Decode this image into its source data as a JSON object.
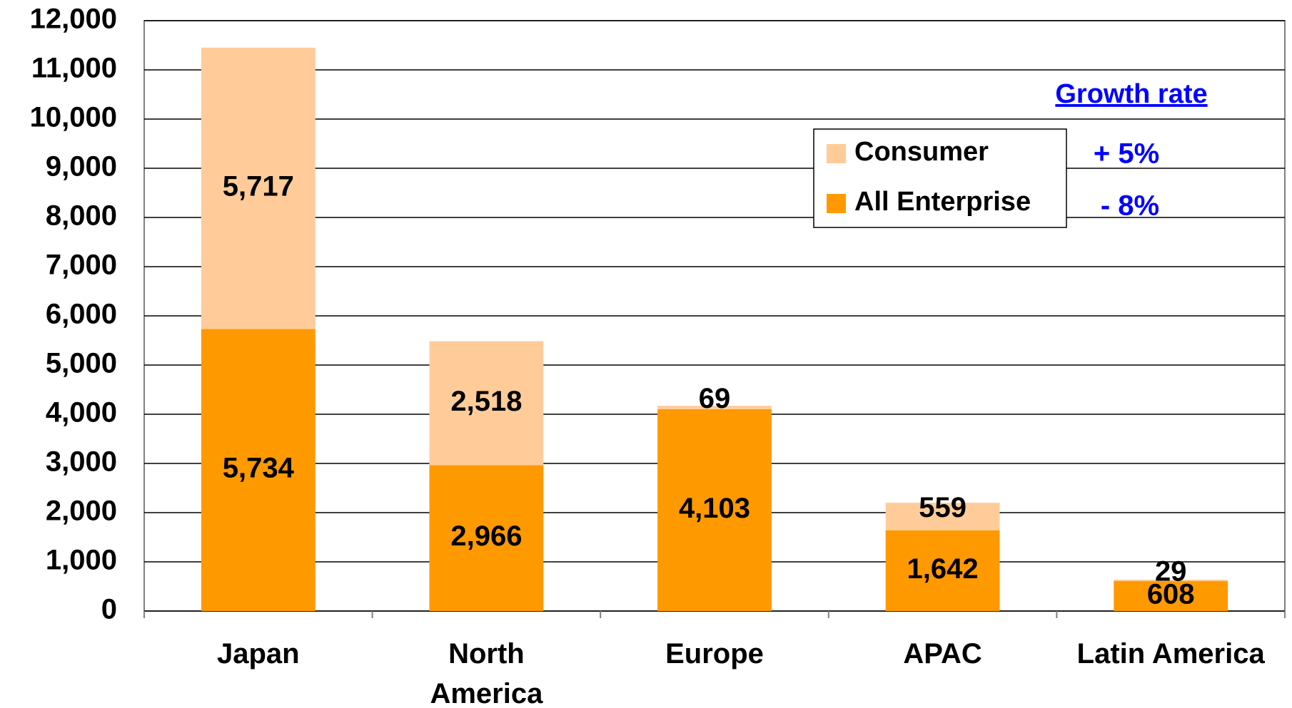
{
  "chart_data": {
    "type": "stacked_bar",
    "categories": [
      "Japan",
      "North\nAmerica",
      "Europe",
      "APAC",
      "Latin America"
    ],
    "series": [
      {
        "name": "All Enterprise",
        "color": "#FF9900",
        "values": [
          5734,
          2966,
          4103,
          1642,
          608
        ],
        "value_labels": [
          "5,734",
          "2,966",
          "4,103",
          "1,642",
          "608"
        ]
      },
      {
        "name": "Consumer",
        "color": "#FFCC99",
        "values": [
          5717,
          2518,
          69,
          559,
          29
        ],
        "value_labels": [
          "5,717",
          "2,518",
          "69",
          "559",
          "29"
        ]
      }
    ],
    "ylim": [
      0,
      12000
    ],
    "yticks": [
      0,
      {
        "value": 1000,
        "label": "1,000"
      },
      {
        "value": 2000,
        "label": "2,000"
      },
      {
        "value": 3000,
        "label": "3,000"
      },
      {
        "value": 4000,
        "label": "4,000"
      },
      {
        "value": 5000,
        "label": "5,000"
      },
      {
        "value": 6000,
        "label": "6,000"
      },
      {
        "value": 7000,
        "label": "7,000"
      },
      {
        "value": 8000,
        "label": "8,000"
      },
      {
        "value": 9000,
        "label": "9,000"
      },
      {
        "value": 10000,
        "label": "10,000"
      },
      {
        "value": 11000,
        "label": "11,000"
      },
      {
        "value": 12000,
        "label": "12,000"
      }
    ],
    "grid": true,
    "annotations": {
      "title": "Growth rate",
      "rates": [
        "+ 5%",
        "- 8%"
      ]
    }
  }
}
